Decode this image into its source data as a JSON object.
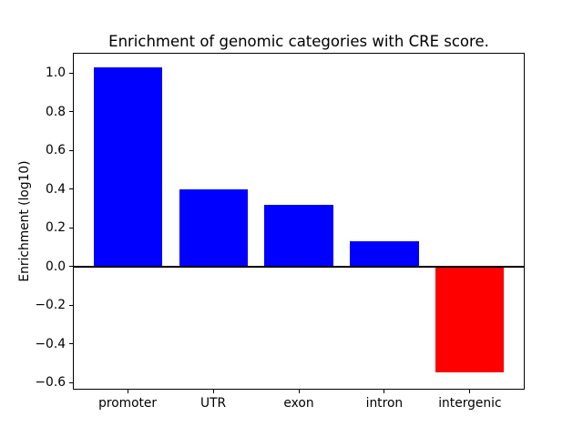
{
  "chart_data": {
    "type": "bar",
    "title": "Enrichment of genomic categories with CRE score.",
    "xlabel": "",
    "ylabel": "Enrichment (log10)",
    "categories": [
      "promoter",
      "UTR",
      "exon",
      "intron",
      "intergenic"
    ],
    "values": [
      1.03,
      0.4,
      0.32,
      0.13,
      -0.55
    ],
    "bar_colors": [
      "#0000ff",
      "#0000ff",
      "#0000ff",
      "#0000ff",
      "#ff0000"
    ],
    "positive_color": "#0000ff",
    "negative_color": "#ff0000",
    "ylim": [
      -0.637,
      1.104
    ],
    "yticks": [
      1.0,
      0.8,
      0.6,
      0.4,
      0.2,
      0.0,
      -0.2,
      -0.4,
      -0.6
    ],
    "zero_line": true,
    "zero_line_color": "#000000",
    "grid": false,
    "legend": null,
    "background": "#ffffff",
    "spine_color": "#000000"
  }
}
